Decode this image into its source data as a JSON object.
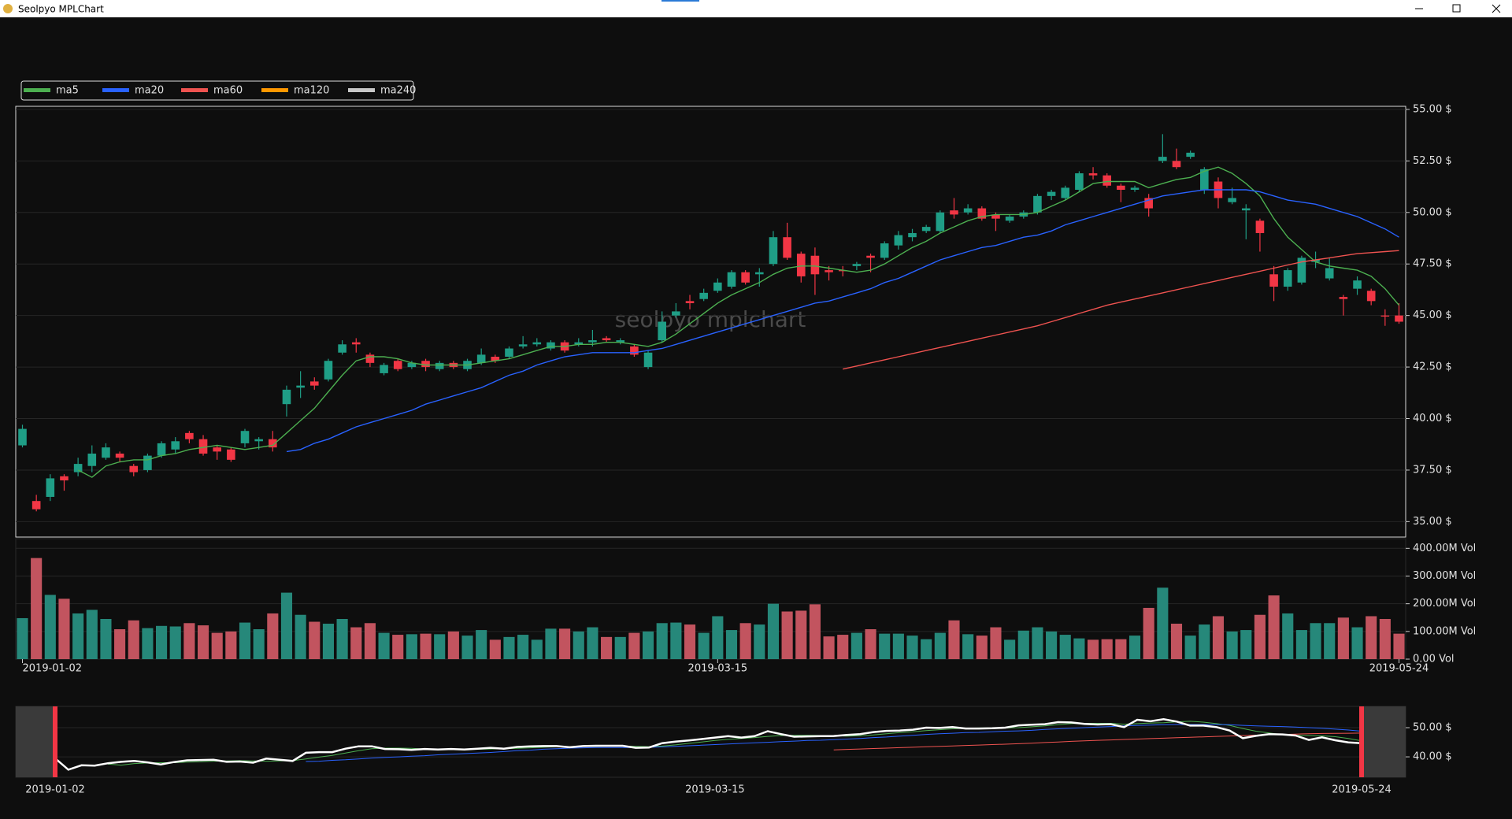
{
  "window": {
    "title": "Seolpyo MPLChart"
  },
  "chart_data": {
    "type": "candlestick",
    "watermark": "seolpyo mplchart",
    "categories": [
      "2019-01-02",
      null,
      null,
      null,
      null,
      null,
      null,
      null,
      null,
      null,
      null,
      null,
      null,
      null,
      null,
      null,
      null,
      null,
      null,
      null,
      null,
      null,
      null,
      null,
      null,
      null,
      null,
      null,
      null,
      null,
      null,
      null,
      null,
      null,
      null,
      null,
      null,
      null,
      null,
      null,
      null,
      null,
      null,
      null,
      null,
      null,
      null,
      null,
      null,
      null,
      "2019-03-15",
      null,
      null,
      null,
      null,
      null,
      null,
      null,
      null,
      null,
      null,
      null,
      null,
      null,
      null,
      null,
      null,
      null,
      null,
      null,
      null,
      null,
      null,
      null,
      null,
      null,
      null,
      null,
      null,
      null,
      null,
      null,
      null,
      null,
      null,
      null,
      null,
      null,
      null,
      null,
      null,
      null,
      null,
      null,
      null,
      null,
      null,
      null,
      null,
      "2019-05-24"
    ],
    "open": [
      38.7,
      36.0,
      36.2,
      37.2,
      37.4,
      37.7,
      38.1,
      38.3,
      37.7,
      37.5,
      38.2,
      38.5,
      39.3,
      39.0,
      38.6,
      38.5,
      38.8,
      38.9,
      39.0,
      40.7,
      41.5,
      41.8,
      41.9,
      43.2,
      43.7,
      43.1,
      42.2,
      42.8,
      42.5,
      42.8,
      42.4,
      42.7,
      42.4,
      42.7,
      43.0,
      43.0,
      43.5,
      43.6,
      43.4,
      43.7,
      43.6,
      43.7,
      43.9,
      43.7,
      43.5,
      42.5,
      43.8,
      45.0,
      45.7,
      45.8,
      46.2,
      46.4,
      47.1,
      47.0,
      47.5,
      48.8,
      48.0,
      47.9,
      47.2,
      47.2,
      47.4,
      47.9,
      47.8,
      48.4,
      48.8,
      49.1,
      49.1,
      50.1,
      50.0,
      50.2,
      49.9,
      49.6,
      49.8,
      50.0,
      50.8,
      50.7,
      51.1,
      51.9,
      51.8,
      51.3,
      51.1,
      50.7,
      52.5,
      52.5,
      52.7,
      51.1,
      51.5,
      50.5,
      50.1,
      49.6,
      47.0,
      46.4,
      46.6,
      47.6,
      46.8,
      45.9,
      46.3,
      46.2,
      45.0,
      45.0
    ],
    "high": [
      39.7,
      36.3,
      37.3,
      37.3,
      38.1,
      38.7,
      38.8,
      38.4,
      37.8,
      38.3,
      38.9,
      39.1,
      39.4,
      39.2,
      38.7,
      38.6,
      39.5,
      39.1,
      39.4,
      41.6,
      42.3,
      42.0,
      42.9,
      43.8,
      43.9,
      43.2,
      42.7,
      42.9,
      42.8,
      42.9,
      42.8,
      42.8,
      42.9,
      43.4,
      43.1,
      43.5,
      44.0,
      43.9,
      43.8,
      43.8,
      43.9,
      44.3,
      44.0,
      43.9,
      43.6,
      43.3,
      45.2,
      45.6,
      46.0,
      46.3,
      46.8,
      47.2,
      47.2,
      47.3,
      49.1,
      49.5,
      48.1,
      48.3,
      47.4,
      47.4,
      47.6,
      48.0,
      48.6,
      49.1,
      49.2,
      49.4,
      50.1,
      50.7,
      50.4,
      50.3,
      50.0,
      49.9,
      50.1,
      50.9,
      51.1,
      51.3,
      52.0,
      52.2,
      51.9,
      51.4,
      51.3,
      50.9,
      53.8,
      53.1,
      53.0,
      52.2,
      51.7,
      51.2,
      50.4,
      49.7,
      47.4,
      47.3,
      47.9,
      48.1,
      47.8,
      46.0,
      46.9,
      46.3,
      45.3,
      45.6
    ],
    "low": [
      38.6,
      35.5,
      36.0,
      36.5,
      37.2,
      37.4,
      38.0,
      37.9,
      37.2,
      37.4,
      38.1,
      38.3,
      38.8,
      38.2,
      38.0,
      37.9,
      38.6,
      38.5,
      38.4,
      40.1,
      41.0,
      41.4,
      41.8,
      43.1,
      43.2,
      42.5,
      42.1,
      42.3,
      42.4,
      42.3,
      42.3,
      42.4,
      42.3,
      42.6,
      42.7,
      42.9,
      43.4,
      43.5,
      43.3,
      43.2,
      43.5,
      43.5,
      43.7,
      43.6,
      43.0,
      42.4,
      43.7,
      44.9,
      45.3,
      45.7,
      46.1,
      46.3,
      46.5,
      46.4,
      47.4,
      47.7,
      46.6,
      46.0,
      46.7,
      46.9,
      47.2,
      47.1,
      47.7,
      48.2,
      48.6,
      49.0,
      49.0,
      49.7,
      49.9,
      49.6,
      49.1,
      49.5,
      49.7,
      49.9,
      50.6,
      50.6,
      51.0,
      51.6,
      51.2,
      50.5,
      51.0,
      49.8,
      52.4,
      52.1,
      52.6,
      50.9,
      50.2,
      50.4,
      48.7,
      48.1,
      45.7,
      46.2,
      46.5,
      47.3,
      46.7,
      45.0,
      46.0,
      45.5,
      44.5,
      44.6
    ],
    "close": [
      39.5,
      35.6,
      37.1,
      37.0,
      37.8,
      38.3,
      38.6,
      38.1,
      37.4,
      38.2,
      38.8,
      38.9,
      39.0,
      38.3,
      38.4,
      38.0,
      39.4,
      39.0,
      38.6,
      41.4,
      41.6,
      41.6,
      42.8,
      43.6,
      43.6,
      42.7,
      42.6,
      42.4,
      42.7,
      42.5,
      42.7,
      42.5,
      42.8,
      43.1,
      42.8,
      43.4,
      43.6,
      43.7,
      43.7,
      43.3,
      43.7,
      43.8,
      43.8,
      43.8,
      43.1,
      43.2,
      44.7,
      45.2,
      45.6,
      46.1,
      46.6,
      47.1,
      46.6,
      47.1,
      48.8,
      47.8,
      46.9,
      47.0,
      47.1,
      47.15,
      47.5,
      47.8,
      48.5,
      48.9,
      49.0,
      49.3,
      50.0,
      49.9,
      50.2,
      49.7,
      49.7,
      49.8,
      50.0,
      50.8,
      51.0,
      51.2,
      51.9,
      51.8,
      51.3,
      51.1,
      51.2,
      50.2,
      52.7,
      52.2,
      52.9,
      52.1,
      50.7,
      50.7,
      50.2,
      49.0,
      46.4,
      47.2,
      47.8,
      47.7,
      47.3,
      45.8,
      46.7,
      45.7,
      44.95,
      44.7
    ],
    "volume": [
      148000000,
      365000000,
      232000000,
      218000000,
      165000000,
      178000000,
      145000000,
      108000000,
      140000000,
      112000000,
      120000000,
      118000000,
      130000000,
      122000000,
      95000000,
      100000000,
      132000000,
      108000000,
      165000000,
      240000000,
      160000000,
      135000000,
      128000000,
      145000000,
      115000000,
      130000000,
      95000000,
      88000000,
      90000000,
      92000000,
      90000000,
      100000000,
      85000000,
      105000000,
      70000000,
      80000000,
      88000000,
      70000000,
      110000000,
      110000000,
      100000000,
      115000000,
      80000000,
      80000000,
      95000000,
      100000000,
      130000000,
      132000000,
      125000000,
      95000000,
      155000000,
      105000000,
      130000000,
      125000000,
      200000000,
      172000000,
      175000000,
      198000000,
      82000000,
      88000000,
      95000000,
      108000000,
      92000000,
      92000000,
      85000000,
      72000000,
      95000000,
      140000000,
      90000000,
      85000000,
      115000000,
      70000000,
      103000000,
      115000000,
      100000000,
      88000000,
      75000000,
      70000000,
      72000000,
      72000000,
      85000000,
      185000000,
      258000000,
      128000000,
      85000000,
      125000000,
      155000000,
      100000000,
      105000000,
      160000000,
      230000000,
      165000000,
      105000000,
      130000000,
      130000000,
      150000000,
      115000000,
      155000000,
      145000000,
      92000000
    ],
    "up_color": "#1f9e86",
    "down_color": "#f23645",
    "volume_up_color": "#26887a",
    "volume_down_color": "#c2545f",
    "series": [
      {
        "name": "ma5",
        "color": "#4caf50",
        "values": [
          null,
          null,
          null,
          null,
          37.5,
          37.15,
          37.7,
          37.9,
          38.0,
          38.0,
          38.2,
          38.3,
          38.5,
          38.6,
          38.7,
          38.6,
          38.5,
          38.6,
          38.7,
          39.3,
          39.9,
          40.5,
          41.3,
          42.1,
          42.8,
          43.0,
          43.0,
          42.9,
          42.7,
          42.6,
          42.6,
          42.6,
          42.6,
          42.7,
          42.8,
          42.9,
          43.1,
          43.3,
          43.5,
          43.5,
          43.6,
          43.6,
          43.7,
          43.7,
          43.6,
          43.5,
          43.7,
          44.1,
          44.6,
          45.1,
          45.6,
          46.0,
          46.3,
          46.6,
          47.0,
          47.3,
          47.4,
          47.4,
          47.3,
          47.2,
          47.1,
          47.2,
          47.5,
          47.9,
          48.3,
          48.6,
          49.0,
          49.3,
          49.6,
          49.8,
          49.9,
          49.9,
          49.9,
          50.0,
          50.3,
          50.6,
          51.0,
          51.4,
          51.5,
          51.5,
          51.5,
          51.2,
          51.4,
          51.6,
          51.7,
          52.0,
          52.2,
          51.9,
          51.4,
          50.8,
          49.7,
          48.8,
          48.2,
          47.6,
          47.4,
          47.3,
          47.2,
          46.9,
          46.3,
          45.5
        ]
      },
      {
        "name": "ma20",
        "color": "#2962ff",
        "values": [
          null,
          null,
          null,
          null,
          null,
          null,
          null,
          null,
          null,
          null,
          null,
          null,
          null,
          null,
          null,
          null,
          null,
          null,
          null,
          38.4,
          38.5,
          38.8,
          39.0,
          39.3,
          39.6,
          39.8,
          40.0,
          40.2,
          40.4,
          40.7,
          40.9,
          41.1,
          41.3,
          41.5,
          41.8,
          42.1,
          42.3,
          42.6,
          42.8,
          43.0,
          43.1,
          43.2,
          43.2,
          43.2,
          43.2,
          43.3,
          43.4,
          43.6,
          43.8,
          44.0,
          44.2,
          44.4,
          44.6,
          44.8,
          45.0,
          45.2,
          45.4,
          45.6,
          45.7,
          45.9,
          46.1,
          46.3,
          46.6,
          46.8,
          47.1,
          47.4,
          47.7,
          47.9,
          48.1,
          48.3,
          48.4,
          48.6,
          48.8,
          48.9,
          49.1,
          49.4,
          49.6,
          49.8,
          50.0,
          50.2,
          50.4,
          50.6,
          50.8,
          50.9,
          51.0,
          51.1,
          51.1,
          51.1,
          51.1,
          51.0,
          50.8,
          50.6,
          50.5,
          50.4,
          50.2,
          50.0,
          49.8,
          49.5,
          49.2,
          48.8
        ]
      },
      {
        "name": "ma60",
        "color": "#ef5350",
        "values": [
          null,
          null,
          null,
          null,
          null,
          null,
          null,
          null,
          null,
          null,
          null,
          null,
          null,
          null,
          null,
          null,
          null,
          null,
          null,
          null,
          null,
          null,
          null,
          null,
          null,
          null,
          null,
          null,
          null,
          null,
          null,
          null,
          null,
          null,
          null,
          null,
          null,
          null,
          null,
          null,
          null,
          null,
          null,
          null,
          null,
          null,
          null,
          null,
          null,
          null,
          null,
          null,
          null,
          null,
          null,
          null,
          null,
          null,
          null,
          42.4,
          42.55,
          42.7,
          42.85,
          43.0,
          43.15,
          43.3,
          43.45,
          43.6,
          43.75,
          43.9,
          44.05,
          44.2,
          44.35,
          44.5,
          44.7,
          44.9,
          45.1,
          45.3,
          45.5,
          45.65,
          45.8,
          45.95,
          46.1,
          46.25,
          46.4,
          46.55,
          46.7,
          46.85,
          47.0,
          47.15,
          47.3,
          47.45,
          47.6,
          47.7,
          47.8,
          47.9,
          48.0,
          48.05,
          48.1,
          48.15
        ]
      },
      {
        "name": "ma120",
        "color": "#ff9800",
        "values": [
          null,
          null,
          null,
          null,
          null,
          null,
          null,
          null,
          null,
          null,
          null,
          null,
          null,
          null,
          null,
          null,
          null,
          null,
          null,
          null,
          null,
          null,
          null,
          null,
          null,
          null,
          null,
          null,
          null,
          null,
          null,
          null,
          null,
          null,
          null,
          null,
          null,
          null,
          null,
          null,
          null,
          null,
          null,
          null,
          null,
          null,
          null,
          null,
          null,
          null,
          null,
          null,
          null,
          null,
          null,
          null,
          null,
          null,
          null,
          null,
          null,
          null,
          null,
          null,
          null,
          null,
          null,
          null,
          null,
          null,
          null,
          null,
          null,
          null,
          null,
          null,
          null,
          null,
          null,
          null,
          null,
          null,
          null,
          null,
          null,
          null,
          null,
          null,
          null,
          null,
          null,
          null,
          null,
          null,
          null,
          null,
          null,
          null,
          null,
          null
        ]
      },
      {
        "name": "ma240",
        "color": "#c8c8c8",
        "values": [
          null,
          null,
          null,
          null,
          null,
          null,
          null,
          null,
          null,
          null,
          null,
          null,
          null,
          null,
          null,
          null,
          null,
          null,
          null,
          null,
          null,
          null,
          null,
          null,
          null,
          null,
          null,
          null,
          null,
          null,
          null,
          null,
          null,
          null,
          null,
          null,
          null,
          null,
          null,
          null,
          null,
          null,
          null,
          null,
          null,
          null,
          null,
          null,
          null,
          null,
          null,
          null,
          null,
          null,
          null,
          null,
          null,
          null,
          null,
          null,
          null,
          null,
          null,
          null,
          null,
          null,
          null,
          null,
          null,
          null,
          null,
          null,
          null,
          null,
          null,
          null,
          null,
          null,
          null,
          null,
          null,
          null,
          null,
          null,
          null,
          null,
          null,
          null,
          null,
          null,
          null,
          null,
          null,
          null,
          null,
          null,
          null,
          null,
          null,
          null
        ]
      }
    ],
    "ylim": [
      34.25,
      55.15
    ],
    "yticks": [
      {
        "value": 35,
        "label": "35.00 $"
      },
      {
        "value": 37.5,
        "label": "37.50 $"
      },
      {
        "value": 40,
        "label": "40.00 $"
      },
      {
        "value": 42.5,
        "label": "42.50 $"
      },
      {
        "value": 45,
        "label": "45.00 $"
      },
      {
        "value": 47.5,
        "label": "47.50 $"
      },
      {
        "value": 50,
        "label": "50.00 $"
      },
      {
        "value": 52.5,
        "label": "52.50 $"
      },
      {
        "value": 55,
        "label": "55.00 $"
      }
    ],
    "grid": true,
    "volume_ylim": [
      0,
      435000000
    ],
    "volume_yticks": [
      {
        "value": 0,
        "label": "0.00 Vol"
      },
      {
        "value": 100000000,
        "label": "100.00M Vol"
      },
      {
        "value": 200000000,
        "label": "200.00M Vol"
      },
      {
        "value": 300000000,
        "label": "300.00M Vol"
      },
      {
        "value": 400000000,
        "label": "400.00M Vol"
      }
    ],
    "navigator_ylim": [
      33,
      57.3
    ],
    "navigator_yticks": [
      {
        "value": 40,
        "label": "40.00 $"
      },
      {
        "value": 50,
        "label": "50.00 $"
      }
    ]
  }
}
